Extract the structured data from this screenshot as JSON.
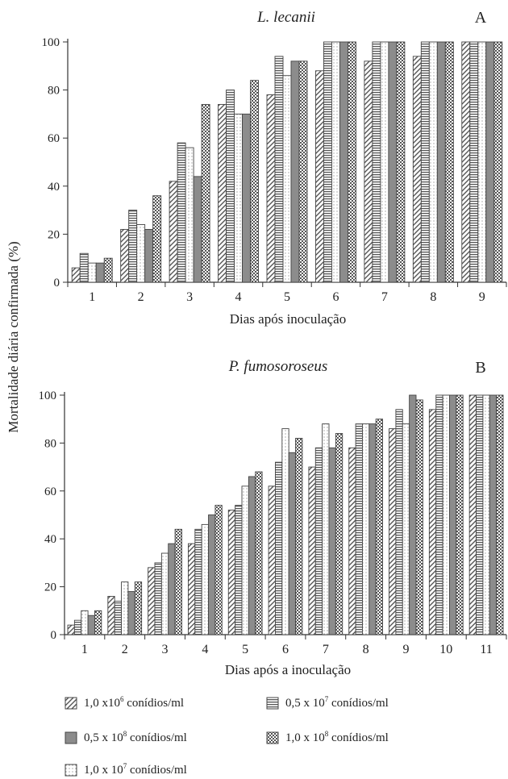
{
  "ylabel": "Mortalidade diária confirmada (%)",
  "colors": {
    "axis": "#333333",
    "stroke": "#444444",
    "solid_gray": "#8c8c8c",
    "pattern_fg": "#555555"
  },
  "legend": [
    {
      "pattern": "diag",
      "prefix": "1,0 x10",
      "exp": "6",
      "suffix": " conídios/ml"
    },
    {
      "pattern": "hstripe",
      "prefix": "0,5 x 10",
      "exp": "7",
      "suffix": " conídios/ml"
    },
    {
      "pattern": "solid",
      "prefix": "0,5 x 10",
      "exp": "8",
      "suffix": " conídios/ml"
    },
    {
      "pattern": "checker",
      "prefix": "1,0 x 10",
      "exp": "8",
      "suffix": " conídios/ml"
    },
    {
      "pattern": "dots",
      "prefix": "1,0 x 10",
      "exp": "7",
      "suffix": " conídios/ml"
    }
  ],
  "chart_data": [
    {
      "type": "bar",
      "panel": "A",
      "title": "L. lecanii",
      "xlabel": "Dias após inoculação",
      "ylabel": "Mortalidade diária confirmada (%)",
      "ylim": [
        0,
        100
      ],
      "yticks": [
        0,
        20,
        40,
        60,
        80,
        100
      ],
      "categories": [
        "1",
        "2",
        "3",
        "4",
        "5",
        "6",
        "7",
        "8",
        "9"
      ],
      "series_order": [
        "diag",
        "hstripe",
        "dots",
        "solid",
        "checker"
      ],
      "series": [
        {
          "pattern": "diag",
          "values": [
            6,
            22,
            42,
            74,
            78,
            88,
            92,
            94,
            100
          ]
        },
        {
          "pattern": "hstripe",
          "values": [
            12,
            30,
            58,
            80,
            94,
            100,
            100,
            100,
            100
          ]
        },
        {
          "pattern": "dots",
          "values": [
            8,
            24,
            56,
            70,
            86,
            100,
            100,
            100,
            100
          ]
        },
        {
          "pattern": "solid",
          "values": [
            8,
            22,
            44,
            70,
            92,
            100,
            100,
            100,
            100
          ]
        },
        {
          "pattern": "checker",
          "values": [
            10,
            36,
            74,
            84,
            92,
            100,
            100,
            100,
            100
          ]
        }
      ]
    },
    {
      "type": "bar",
      "panel": "B",
      "title": "P. fumosoroseus",
      "xlabel": "Dias após a inoculação",
      "ylabel": "Mortalidade diária confirmada (%)",
      "ylim": [
        0,
        100
      ],
      "yticks": [
        0,
        20,
        40,
        60,
        80,
        100
      ],
      "categories": [
        "1",
        "2",
        "3",
        "4",
        "5",
        "6",
        "7",
        "8",
        "9",
        "10",
        "11"
      ],
      "series_order": [
        "diag",
        "hstripe",
        "dots",
        "solid",
        "checker"
      ],
      "series": [
        {
          "pattern": "diag",
          "values": [
            4,
            16,
            28,
            38,
            52,
            62,
            70,
            78,
            86,
            94,
            100
          ]
        },
        {
          "pattern": "hstripe",
          "values": [
            6,
            14,
            30,
            44,
            54,
            72,
            78,
            88,
            94,
            100,
            100
          ]
        },
        {
          "pattern": "dots",
          "values": [
            10,
            22,
            34,
            46,
            62,
            86,
            88,
            88,
            88,
            100,
            100
          ]
        },
        {
          "pattern": "solid",
          "values": [
            8,
            18,
            38,
            50,
            66,
            76,
            78,
            88,
            100,
            100,
            100
          ]
        },
        {
          "pattern": "checker",
          "values": [
            10,
            22,
            44,
            54,
            68,
            82,
            84,
            90,
            98,
            100,
            100
          ]
        }
      ]
    }
  ]
}
